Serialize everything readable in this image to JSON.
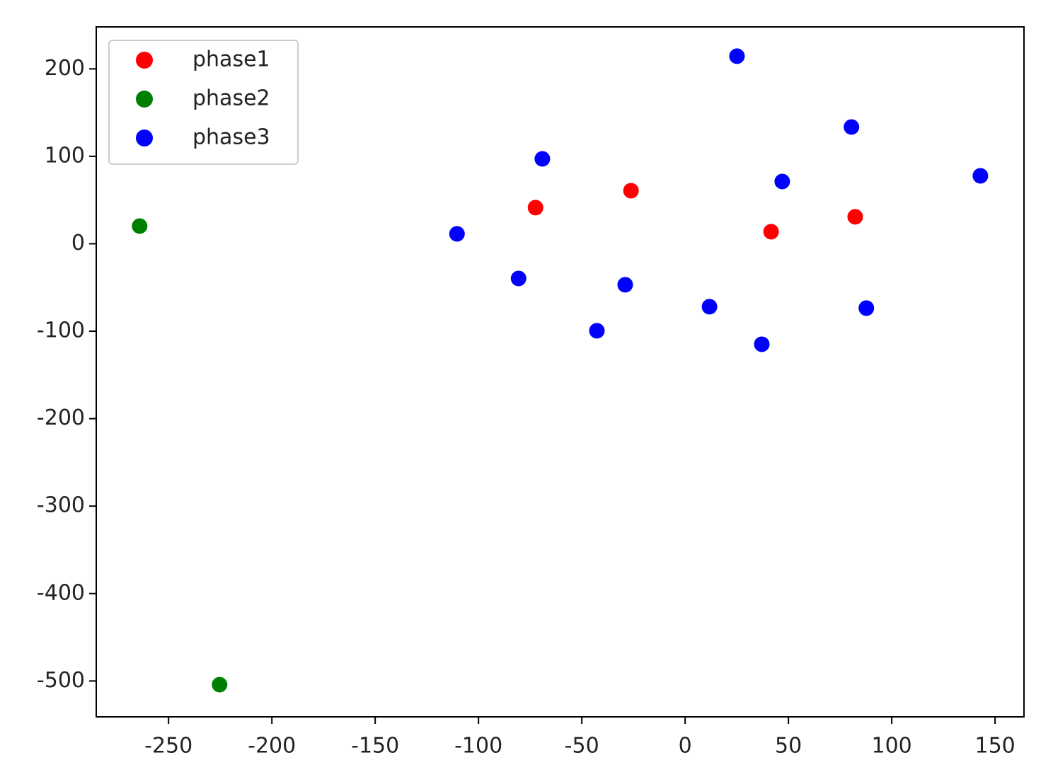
{
  "chart_data": {
    "type": "scatter",
    "xlim": [
      -285,
      164
    ],
    "ylim": [
      -541,
      248
    ],
    "xticks": [
      -250,
      -200,
      -150,
      -100,
      -50,
      0,
      50,
      100,
      150
    ],
    "yticks": [
      -500,
      -400,
      -300,
      -200,
      -100,
      0,
      100,
      200
    ],
    "legend": "upper left",
    "series": [
      {
        "name": "phase1",
        "color": "#ff0000",
        "x": [
          -72.4,
          -26.2,
          41.6,
          82.3
        ],
        "values": [
          41.3,
          60.7,
          13.8,
          30.8
        ]
      },
      {
        "name": "phase2",
        "color": "#008000",
        "x": [
          -264.0,
          -225.3
        ],
        "values": [
          20.2,
          -504.2
        ]
      },
      {
        "name": "phase3",
        "color": "#0000ff",
        "x": [
          25.1,
          80.5,
          -69.1,
          47.0,
          142.9,
          -110.4,
          -80.6,
          -29.0,
          -42.7,
          11.8,
          87.7,
          37.1
        ],
        "values": [
          214.5,
          133.5,
          97.1,
          71.2,
          77.7,
          11.3,
          -39.7,
          -46.9,
          -99.5,
          -72.0,
          -73.6,
          -114.9
        ]
      }
    ]
  }
}
